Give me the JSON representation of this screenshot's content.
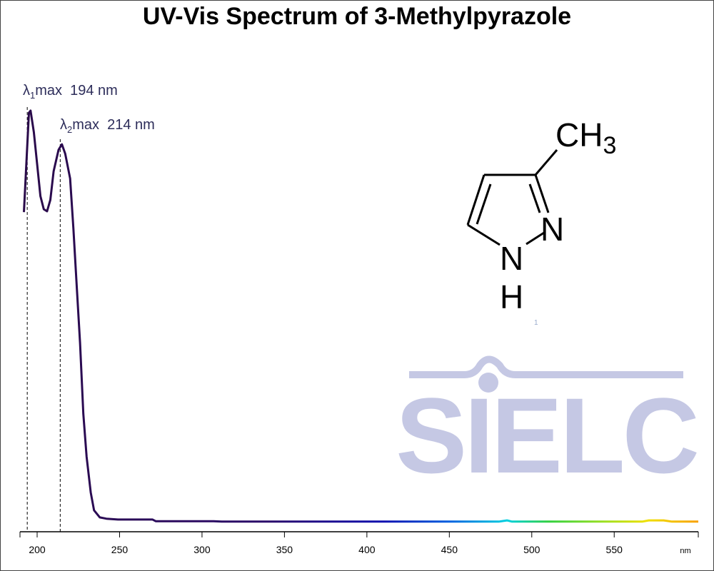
{
  "chart_data": {
    "type": "line",
    "title": "UV-Vis Spectrum of 3-Methylpyrazole",
    "x_label": "nm",
    "x": [
      192,
      195,
      196,
      198,
      200,
      202,
      204,
      206,
      208,
      210,
      213,
      215,
      217,
      220,
      222,
      224,
      226,
      228,
      230,
      232.5,
      234.5,
      238,
      242,
      249,
      270,
      272,
      307,
      312,
      350,
      394,
      480,
      485,
      488,
      567,
      571,
      580,
      585,
      601
    ],
    "series": [
      {
        "name": "3-Methylpyrazole",
        "color": "#2a0a4a",
        "values": [
          0.759,
          0.995,
          1.0,
          0.949,
          0.873,
          0.797,
          0.766,
          0.761,
          0.788,
          0.856,
          0.907,
          0.92,
          0.898,
          0.839,
          0.72,
          0.585,
          0.449,
          0.28,
          0.178,
          0.093,
          0.051,
          0.034,
          0.031,
          0.029,
          0.029,
          0.025,
          0.025,
          0.024,
          0.024,
          0.024,
          0.024,
          0.027,
          0.024,
          0.024,
          0.027,
          0.027,
          0.024,
          0.024
        ]
      }
    ],
    "gradient": [
      {
        "x": 192,
        "color": "#2a0a4a"
      },
      {
        "x": 340,
        "color": "#2a0a6a"
      },
      {
        "x": 410,
        "color": "#1010b0"
      },
      {
        "x": 450,
        "color": "#0060e0"
      },
      {
        "x": 485,
        "color": "#00d0e0"
      },
      {
        "x": 510,
        "color": "#30d040"
      },
      {
        "x": 545,
        "color": "#a0e020"
      },
      {
        "x": 570,
        "color": "#f0e000"
      },
      {
        "x": 601,
        "color": "#f8a000"
      }
    ],
    "xlim": [
      189.6,
      601
    ],
    "ylim": [
      0,
      1.1
    ],
    "xticks": [
      200,
      250,
      300,
      350,
      400,
      450,
      500,
      550
    ],
    "annotations": [
      {
        "symbol": "λ",
        "subscript": "1",
        "label": "max  194 nm",
        "x": 194
      },
      {
        "symbol": "λ",
        "subscript": "2",
        "label": "max  214 nm",
        "x": 214
      }
    ]
  },
  "structure": {
    "methyl": "CH",
    "methyl_subscript": "3",
    "n2": "N",
    "n1": "N",
    "h": "H",
    "footnote": "1"
  },
  "watermark": "SIELC"
}
